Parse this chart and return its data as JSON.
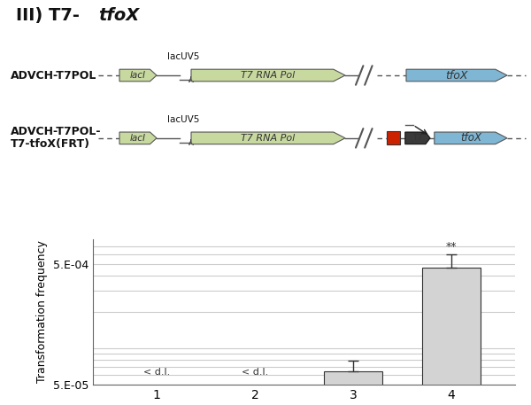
{
  "title_plain": "III) T7-",
  "title_italic": "tfoX",
  "bar_values": [
    null,
    null,
    6.5e-05,
    0.00046
  ],
  "bar_errors": [
    null,
    null,
    1.4e-05,
    0.00014
  ],
  "bar_color": "#d3d3d3",
  "bar_edge_color": "#333333",
  "bar_labels": [
    "1",
    "2",
    "3",
    "4"
  ],
  "dl_labels": [
    "< d.l.",
    "< d.l.",
    null,
    null
  ],
  "sig_label": "**",
  "ylabel": "Transformation frequency",
  "ymin": 5e-05,
  "ymax": 0.0008,
  "yticks": [
    5e-05,
    0.0005
  ],
  "ytick_labels": [
    "5.E-05",
    "5.E-04"
  ],
  "grid_color": "#cccccc",
  "bg_color": "#ffffff",
  "row1_label": "ADVCH-T7POL",
  "row2_label_line1": "ADVCH-T7POL-",
  "row2_label_line2": "T7-tfoX(FRT)",
  "lacI_color": "#c8d9a0",
  "T7pol_color": "#c8d9a0",
  "tfoX_color": "#7eb6d4",
  "T7promoter_color": "#3a3a3a",
  "FRT_color": "#cc2200",
  "line_color": "#555555",
  "gene_edge_color": "#555555",
  "arrow_color": "#222222"
}
